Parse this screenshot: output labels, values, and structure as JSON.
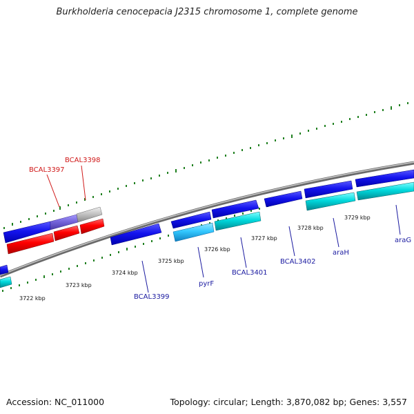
{
  "title": "Burkholderia cenocepacia J2315 chromosome 1, complete genome",
  "footer": {
    "accession": "Accession: NC_011000",
    "topology": "Topology: circular; Length: 3,870,082 bp; Genes: 3,557"
  },
  "colors": {
    "forward_gene": "#1010e6",
    "reverse_gene": "#ff0000",
    "cyan_gene": "#00d0d8",
    "light_blue_gene": "#33ccff",
    "gray_gene": "#c0c0c0",
    "purple_gene": "#7a6ad8",
    "backbone": "#8a8a8a",
    "ticks": "#208020",
    "label_blue": "#1a1aa0",
    "label_red": "#d01818"
  },
  "scale_labels": [
    "3722 kbp",
    "3723 kbp",
    "3724 kbp",
    "3725 kbp",
    "3726 kbp",
    "3727 kbp",
    "3728 kbp",
    "3729 kbp"
  ],
  "gene_labels": [
    {
      "text": "BCAL3397",
      "color": "red"
    },
    {
      "text": "BCAL3398",
      "color": "red"
    },
    {
      "text": "BCAL3399",
      "color": "blue"
    },
    {
      "text": "pyrF",
      "color": "blue"
    },
    {
      "text": "BCAL3401",
      "color": "blue"
    },
    {
      "text": "BCAL3402",
      "color": "blue"
    },
    {
      "text": "araH",
      "color": "blue"
    },
    {
      "text": "araG",
      "color": "blue"
    }
  ]
}
